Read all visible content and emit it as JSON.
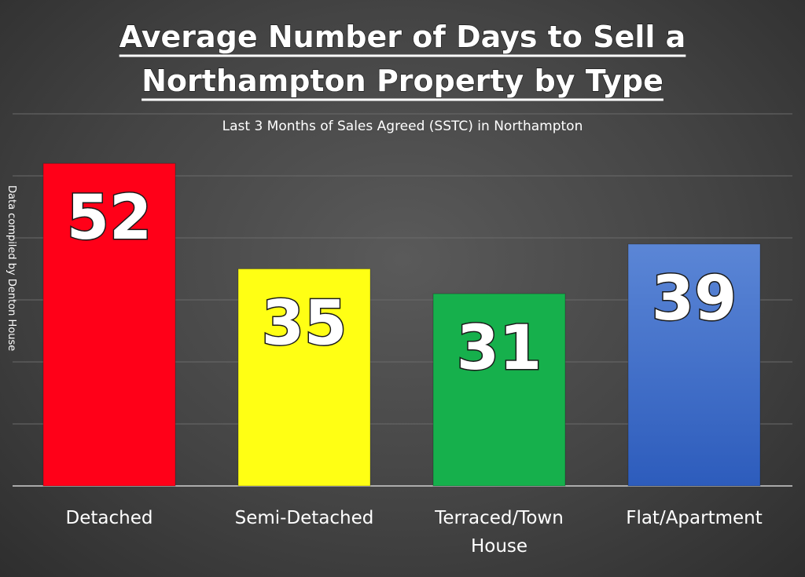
{
  "chart_data": {
    "type": "bar",
    "title_lines": [
      "Average Number of Days to Sell a",
      "Northampton Property by Type"
    ],
    "subtitle": "Last 3 Months of Sales Agreed (SSTC) in Northampton",
    "side_note": "Data compiled by Denton House",
    "categories": [
      [
        "Detached"
      ],
      [
        "Semi-Detached"
      ],
      [
        "Terraced/Town",
        "House"
      ],
      [
        "Flat/Apartment"
      ]
    ],
    "values": [
      52,
      35,
      31,
      39
    ],
    "colors": [
      "#ff0018",
      "#ffff14",
      "#16b04c",
      "#3d6cc4"
    ],
    "grid": true,
    "legend": "none",
    "ylim": [
      0,
      60
    ]
  }
}
